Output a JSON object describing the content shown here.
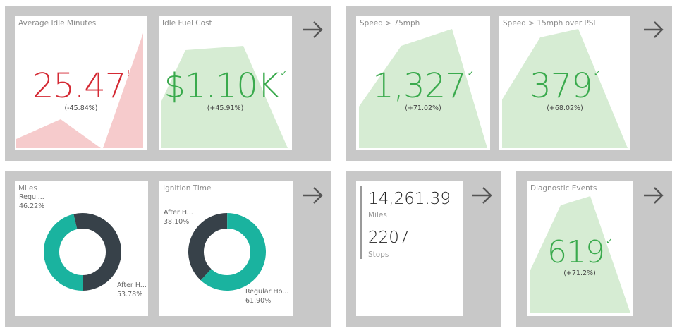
{
  "colors": {
    "panel_bg": "#c8c8c8",
    "good": "#3aaa4d",
    "bad": "#d42a34",
    "good_fill": "#d6ecd3",
    "bad_fill": "#f6cbcc",
    "donut_teal": "#1ab39f",
    "donut_dark": "#374149"
  },
  "icons": {
    "drill_arrow": "arrow-right-icon",
    "good_mark": "checkmark-icon",
    "bad_mark": "exclamation-icon"
  },
  "cards": {
    "avg_idle": {
      "title": "Average Idle Minutes",
      "value": "25.47",
      "mark": "!",
      "delta": "(-45.84%)"
    },
    "idle_fuel": {
      "title": "Idle Fuel Cost",
      "value": "$1.10K",
      "mark": "✓",
      "delta": "(+45.91%)"
    },
    "speed75": {
      "title": "Speed > 75mph",
      "value": "1,327",
      "mark": "✓",
      "delta": "(+71.02%)"
    },
    "speed15": {
      "title": "Speed > 15mph over PSL",
      "value": "379",
      "mark": "✓",
      "delta": "(+68.02%)"
    },
    "miles": {
      "title": "Miles",
      "segments": [
        {
          "label": "Regul...",
          "percent": "46.22%",
          "value": 46.22
        },
        {
          "label": "After H...",
          "percent": "53.78%",
          "value": 53.78
        }
      ]
    },
    "ignition": {
      "title": "Ignition Time",
      "segments": [
        {
          "label": "After H...",
          "percent": "38.10%",
          "value": 38.1
        },
        {
          "label": "Regular Ho...",
          "percent": "61.90%",
          "value": 61.9
        }
      ]
    },
    "stats": {
      "miles_value": "14,261.39",
      "miles_label": "Miles",
      "stops_value": "2207",
      "stops_label": "Stops"
    },
    "diagnostic": {
      "title": "Diagnostic Events",
      "value": "619",
      "mark": "✓",
      "delta": "(+71.2%)"
    }
  }
}
